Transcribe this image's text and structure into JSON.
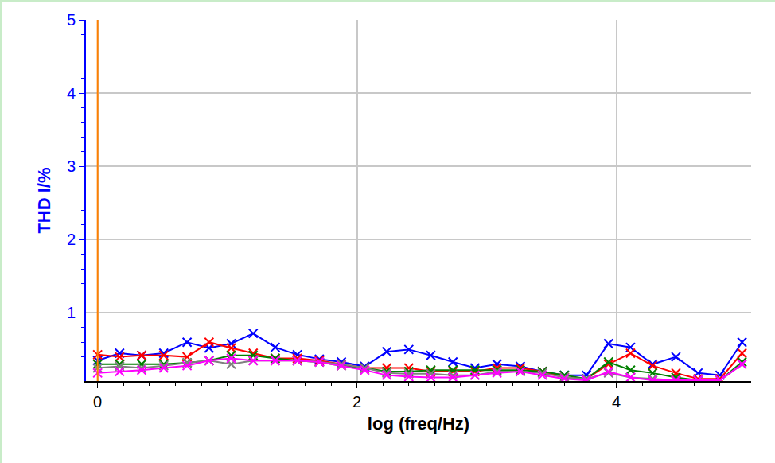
{
  "chart_data": {
    "type": "line",
    "x_label": "log (freq/Hz)",
    "y_label": "THD I/%",
    "x": [
      0,
      0.17,
      0.34,
      0.51,
      0.69,
      0.86,
      1.03,
      1.2,
      1.37,
      1.54,
      1.71,
      1.88,
      2.06,
      2.23,
      2.4,
      2.57,
      2.74,
      2.91,
      3.08,
      3.26,
      3.43,
      3.6,
      3.77,
      3.94,
      4.11,
      4.28,
      4.46,
      4.63,
      4.8,
      4.97
    ],
    "series": [
      {
        "color": "#0000ff",
        "marker": "x",
        "line_style": "solid",
        "values": [
          0.35,
          0.45,
          0.42,
          0.45,
          0.6,
          0.52,
          0.58,
          0.72,
          0.53,
          0.43,
          0.37,
          0.33,
          0.27,
          0.47,
          0.5,
          0.42,
          0.33,
          0.25,
          0.3,
          0.27,
          0.2,
          0.15,
          0.15,
          0.58,
          0.53,
          0.3,
          0.4,
          0.18,
          0.15,
          0.6
        ]
      },
      {
        "color": "#ff0000",
        "marker": "x",
        "line_style": "solid",
        "values": [
          0.43,
          0.4,
          0.42,
          0.42,
          0.4,
          0.6,
          0.52,
          0.45,
          0.38,
          0.38,
          0.35,
          0.3,
          0.25,
          0.25,
          0.25,
          0.2,
          0.2,
          0.2,
          0.25,
          0.25,
          0.2,
          0.12,
          0.1,
          0.3,
          0.45,
          0.28,
          0.18,
          0.1,
          0.1,
          0.45
        ]
      },
      {
        "color": "#008000",
        "marker": "x",
        "line_style": "solid",
        "values": [
          0.3,
          0.3,
          0.3,
          0.3,
          0.32,
          0.35,
          0.42,
          0.42,
          0.38,
          0.35,
          0.33,
          0.28,
          0.25,
          0.2,
          0.2,
          0.22,
          0.22,
          0.22,
          0.22,
          0.22,
          0.2,
          0.15,
          0.1,
          0.33,
          0.22,
          0.18,
          0.12,
          0.08,
          0.08,
          0.33
        ]
      },
      {
        "color": "#808080",
        "marker": "x",
        "line_style": "solid",
        "values": [
          0.25,
          0.27,
          0.25,
          0.28,
          0.32,
          0.35,
          0.3,
          0.35,
          0.35,
          0.35,
          0.33,
          0.3,
          0.25,
          0.18,
          0.17,
          0.17,
          0.15,
          0.15,
          0.2,
          0.2,
          0.18,
          0.12,
          0.1,
          0.18,
          0.12,
          0.1,
          0.08,
          0.08,
          0.08,
          0.3
        ]
      },
      {
        "color": "#ff00ff",
        "marker": "x",
        "line_style": "solid",
        "values": [
          0.18,
          0.2,
          0.22,
          0.25,
          0.28,
          0.35,
          0.38,
          0.35,
          0.35,
          0.35,
          0.33,
          0.28,
          0.22,
          0.15,
          0.13,
          0.12,
          0.12,
          0.15,
          0.18,
          0.2,
          0.15,
          0.1,
          0.08,
          0.2,
          0.12,
          0.08,
          0.08,
          0.08,
          0.08,
          0.3
        ]
      }
    ],
    "xlim": [
      -0.09,
      5.04
    ],
    "ylim": [
      0.07,
      5
    ],
    "xticks": [
      0,
      2,
      4
    ],
    "yticks": [
      1,
      2,
      3,
      4,
      5
    ],
    "grid": true
  }
}
